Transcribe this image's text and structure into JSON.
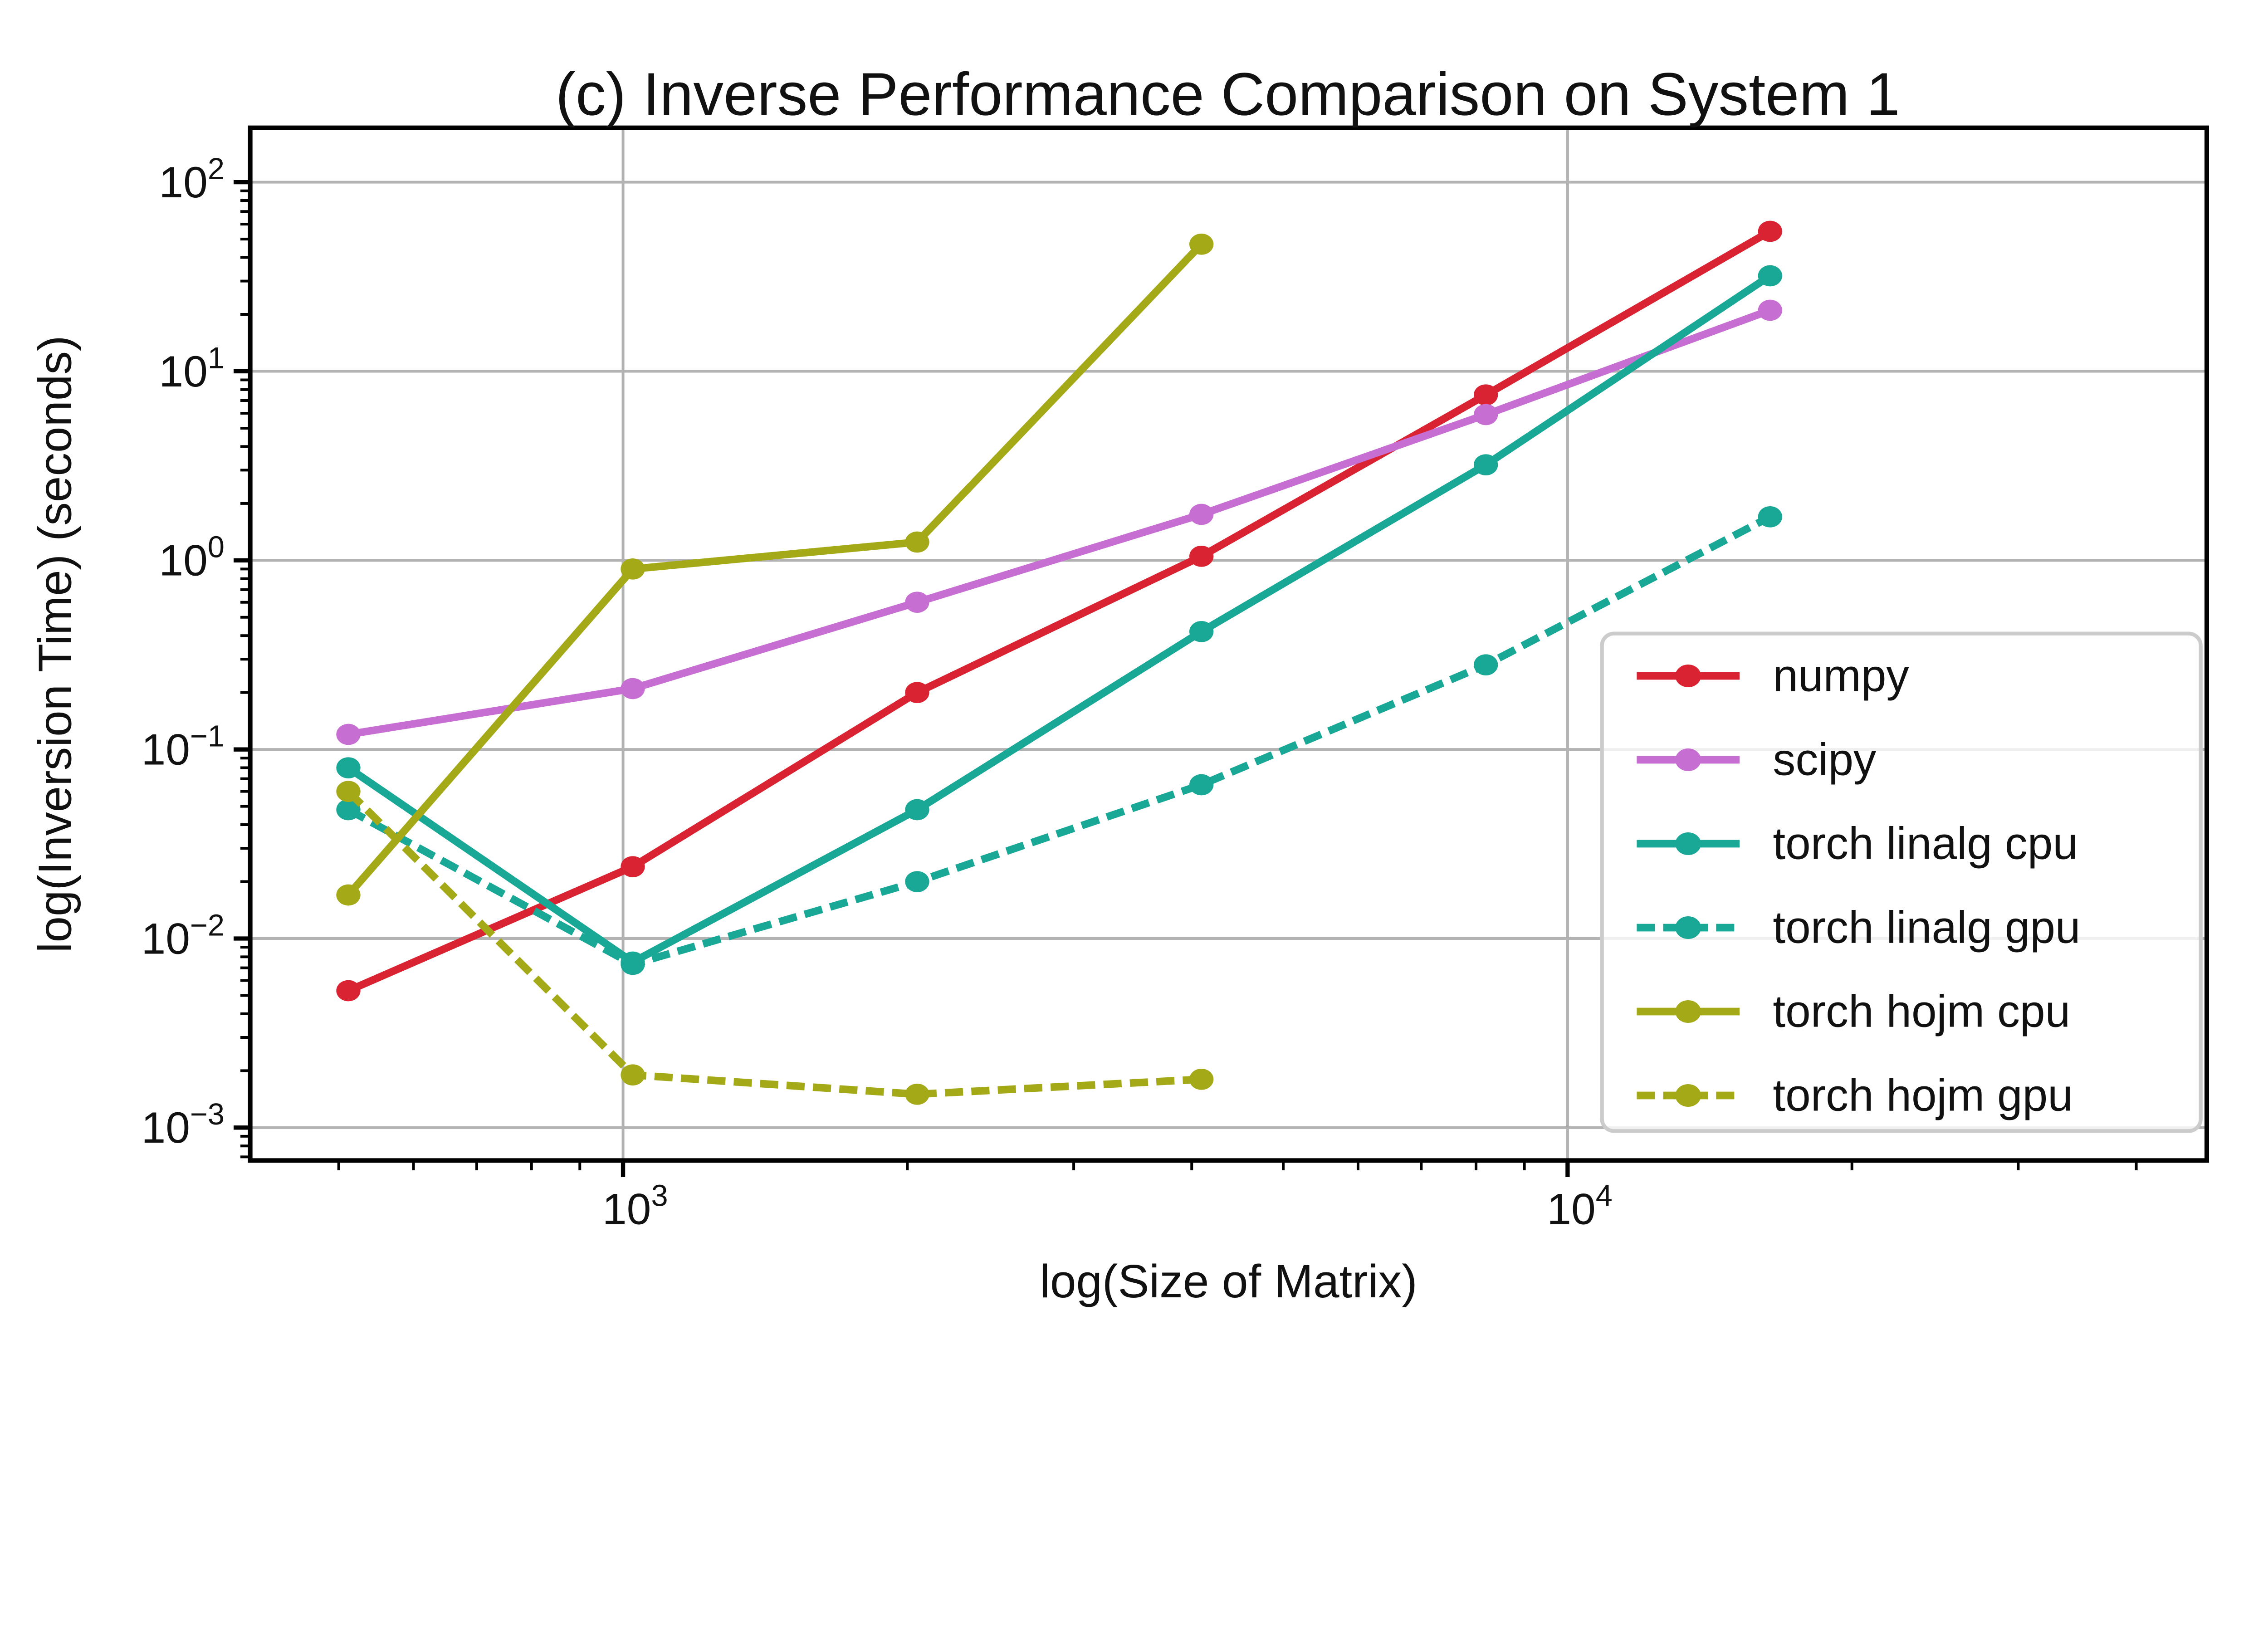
{
  "figure": {
    "background": "#ffffff"
  },
  "chart_data": {
    "type": "line",
    "title": "(c) Inverse Performance Comparison on System 1",
    "xlabel": "log(Size of Matrix)",
    "ylabel": "log(Inversion Time) (seconds)",
    "x_scale": "log",
    "y_scale": "log",
    "xlim": [
      403,
      47500
    ],
    "ylim": [
      0.00067,
      194
    ],
    "x_major_ticks": [
      1000,
      10000
    ],
    "x_tick_labels": [
      "10^3",
      "10^4"
    ],
    "y_major_ticks": [
      0.001,
      0.01,
      0.1,
      1,
      10,
      100
    ],
    "y_tick_labels": [
      "10^-3",
      "10^-2",
      "10^-1",
      "10^0",
      "10^1",
      "10^2"
    ],
    "grid": "major",
    "grid_color": "#b3b3b3",
    "frame_color": "#000000",
    "text_color": "#111111",
    "legend": {
      "position": "lower-right-inset",
      "frame_alpha": 0.8,
      "border_color": "#cccccc",
      "entries": [
        "numpy",
        "scipy",
        "torch linalg cpu",
        "torch linalg gpu",
        "torch hojm cpu",
        "torch hojm gpu"
      ]
    },
    "series": [
      {
        "name": "numpy",
        "color": "#da2332",
        "linestyle": "solid",
        "x": [
          512,
          1024,
          2048,
          4096,
          8192,
          16384
        ],
        "y": [
          0.0053,
          0.024,
          0.2,
          1.05,
          7.5,
          55
        ]
      },
      {
        "name": "scipy",
        "color": "#c76ed2",
        "linestyle": "solid",
        "x": [
          512,
          1024,
          2048,
          4096,
          8192,
          16384
        ],
        "y": [
          0.12,
          0.21,
          0.6,
          1.75,
          5.9,
          21
        ]
      },
      {
        "name": "torch linalg cpu",
        "color": "#19a896",
        "linestyle": "solid",
        "x": [
          512,
          1024,
          2048,
          4096,
          8192,
          16384
        ],
        "y": [
          0.08,
          0.0075,
          0.048,
          0.42,
          3.2,
          32
        ]
      },
      {
        "name": "torch linalg gpu",
        "color": "#19a896",
        "linestyle": "dashed",
        "x": [
          512,
          1024,
          2048,
          4096,
          8192,
          16384
        ],
        "y": [
          0.048,
          0.0073,
          0.02,
          0.065,
          0.28,
          1.7
        ]
      },
      {
        "name": "torch hojm cpu",
        "color": "#a4a918",
        "linestyle": "solid",
        "x": [
          512,
          1024,
          2048,
          4096
        ],
        "y": [
          0.017,
          0.9,
          1.25,
          47
        ]
      },
      {
        "name": "torch hojm gpu",
        "color": "#a4a918",
        "linestyle": "dashed",
        "x": [
          512,
          1024,
          2048,
          4096
        ],
        "y": [
          0.06,
          0.0019,
          0.0015,
          0.0018
        ]
      }
    ]
  }
}
